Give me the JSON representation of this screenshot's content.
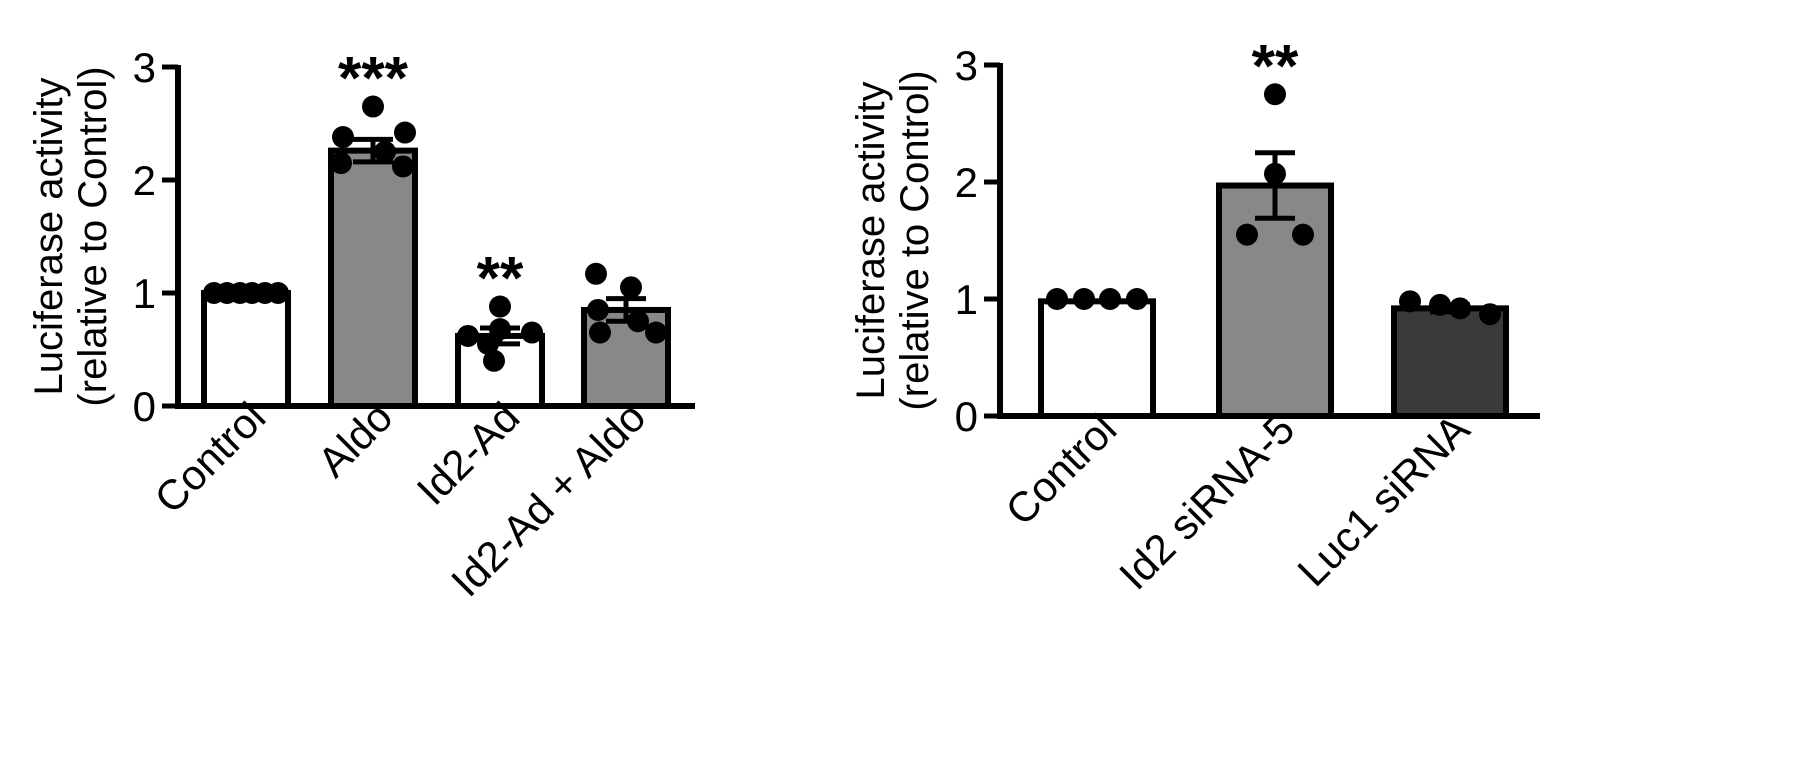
{
  "chart_data": [
    {
      "type": "bar",
      "ylabel": [
        "Luciferase activity",
        "(relative to Control)"
      ],
      "ylim": [
        0,
        3
      ],
      "yticks": [
        0,
        1,
        2,
        3
      ],
      "categories": [
        "Control",
        "Aldo",
        "Id2-Ad",
        "Id2-Ad + Aldo"
      ],
      "values": [
        1.0,
        2.26,
        0.62,
        0.85
      ],
      "sem": [
        0.0,
        0.1,
        0.07,
        0.1
      ],
      "significance": [
        "",
        "***",
        "**",
        ""
      ],
      "bar_colors": [
        "#ffffff",
        "#888888",
        "#ffffff",
        "#888888"
      ],
      "points": [
        [
          1.0,
          1.0,
          1.0,
          1.0,
          1.0,
          1.0
        ],
        [
          2.65,
          2.42,
          2.38,
          2.25,
          2.15,
          2.12
        ],
        [
          0.88,
          0.68,
          0.65,
          0.62,
          0.55,
          0.4
        ],
        [
          1.17,
          1.05,
          0.85,
          0.75,
          0.65,
          0.65
        ]
      ]
    },
    {
      "type": "bar",
      "ylabel": [
        "Luciferase activity",
        "(relative to Control)"
      ],
      "ylim": [
        0,
        3
      ],
      "yticks": [
        0,
        1,
        2,
        3
      ],
      "categories": [
        "Control",
        "Id2 siRNA-5",
        "Luc1 siRNA"
      ],
      "values": [
        0.98,
        1.97,
        0.92
      ],
      "sem": [
        0.0,
        0.28,
        0.03
      ],
      "significance": [
        "",
        "**",
        ""
      ],
      "bar_colors": [
        "#ffffff",
        "#888888",
        "#3a3a3a"
      ],
      "points": [
        [
          1.0,
          1.0,
          1.0,
          1.0
        ],
        [
          2.75,
          2.07,
          1.55,
          1.55
        ],
        [
          0.98,
          0.95,
          0.92,
          0.87
        ]
      ]
    }
  ]
}
